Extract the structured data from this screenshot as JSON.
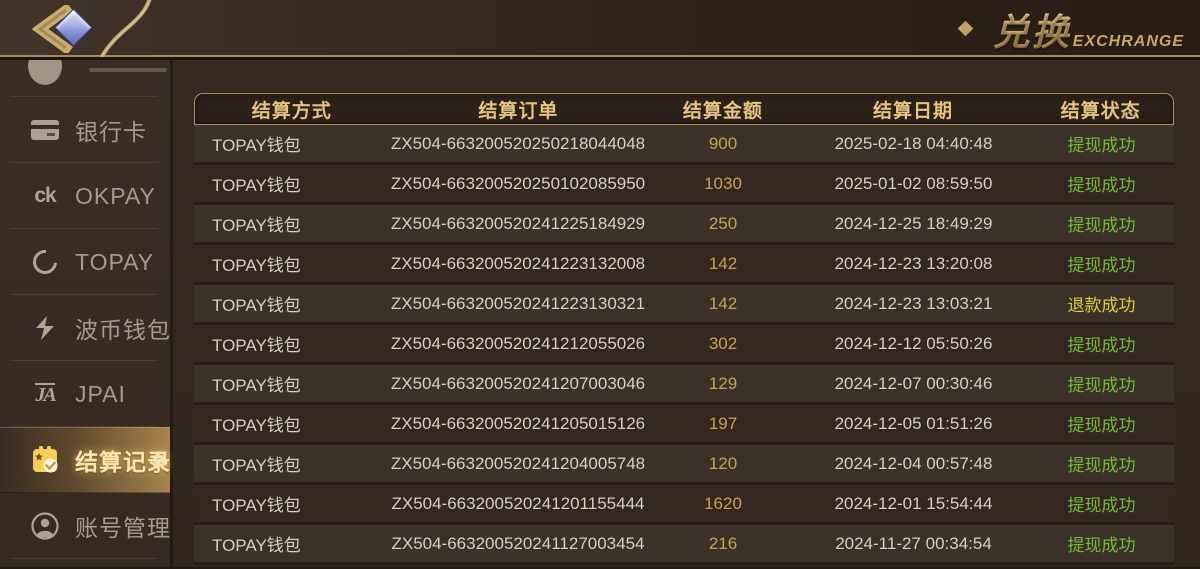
{
  "topbar": {
    "back_icon": "back-chevron-with-gem",
    "title_cn": "兑换",
    "title_en": "EXCHRANGE",
    "accent_gold": "#c9a86a"
  },
  "sidebar": {
    "items": [
      {
        "id": "bank-card",
        "label": "银行卡",
        "icon": "bank-card-icon",
        "active": false
      },
      {
        "id": "okpay",
        "label": "OKPAY",
        "icon": "okpay-ck-icon",
        "icon_text": "ck",
        "active": false
      },
      {
        "id": "topay",
        "label": "TOPAY",
        "icon": "topay-swoosh-icon",
        "active": false
      },
      {
        "id": "boba-wallet",
        "label": "波币钱包",
        "icon": "lightning-bolt-icon",
        "active": false
      },
      {
        "id": "jpai",
        "label": "JPAI",
        "icon": "jpai-monogram-icon",
        "icon_text": "JA",
        "active": false
      },
      {
        "id": "settlement-records",
        "label": "结算记录",
        "icon": "clipboard-check-icon",
        "active": true
      },
      {
        "id": "account-management",
        "label": "账号管理",
        "icon": "person-circle-icon",
        "active": false
      }
    ],
    "active_arrow_glyph": "«"
  },
  "table": {
    "headers": [
      "结算方式",
      "结算订单",
      "结算金额",
      "结算日期",
      "结算状态"
    ],
    "status_colors": {
      "success": "#74ba3d",
      "refund": "#d6d236"
    },
    "amount_color": "#c8a54e",
    "rows": [
      {
        "method": "TOPAY钱包",
        "order": "ZX504-663200520250218044048",
        "amount": "900",
        "date": "2025-02-18 04:40:48",
        "status": "提现成功",
        "status_type": "success"
      },
      {
        "method": "TOPAY钱包",
        "order": "ZX504-663200520250102085950",
        "amount": "1030",
        "date": "2025-01-02 08:59:50",
        "status": "提现成功",
        "status_type": "success"
      },
      {
        "method": "TOPAY钱包",
        "order": "ZX504-663200520241225184929",
        "amount": "250",
        "date": "2024-12-25 18:49:29",
        "status": "提现成功",
        "status_type": "success"
      },
      {
        "method": "TOPAY钱包",
        "order": "ZX504-663200520241223132008",
        "amount": "142",
        "date": "2024-12-23 13:20:08",
        "status": "提现成功",
        "status_type": "success"
      },
      {
        "method": "TOPAY钱包",
        "order": "ZX504-663200520241223130321",
        "amount": "142",
        "date": "2024-12-23 13:03:21",
        "status": "退款成功",
        "status_type": "refund"
      },
      {
        "method": "TOPAY钱包",
        "order": "ZX504-663200520241212055026",
        "amount": "302",
        "date": "2024-12-12 05:50:26",
        "status": "提现成功",
        "status_type": "success"
      },
      {
        "method": "TOPAY钱包",
        "order": "ZX504-663200520241207003046",
        "amount": "129",
        "date": "2024-12-07 00:30:46",
        "status": "提现成功",
        "status_type": "success"
      },
      {
        "method": "TOPAY钱包",
        "order": "ZX504-663200520241205015126",
        "amount": "197",
        "date": "2024-12-05 01:51:26",
        "status": "提现成功",
        "status_type": "success"
      },
      {
        "method": "TOPAY钱包",
        "order": "ZX504-663200520241204005748",
        "amount": "120",
        "date": "2024-12-04 00:57:48",
        "status": "提现成功",
        "status_type": "success"
      },
      {
        "method": "TOPAY钱包",
        "order": "ZX504-663200520241201155444",
        "amount": "1620",
        "date": "2024-12-01 15:54:44",
        "status": "提现成功",
        "status_type": "success"
      },
      {
        "method": "TOPAY钱包",
        "order": "ZX504-663200520241127003454",
        "amount": "216",
        "date": "2024-11-27 00:34:54",
        "status": "提现成功",
        "status_type": "success"
      }
    ]
  }
}
